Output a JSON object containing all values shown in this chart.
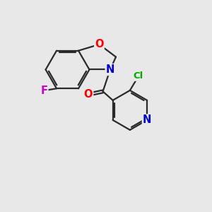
{
  "bg_color": "#e8e8e8",
  "bond_color": "#2a2a2a",
  "bond_width": 1.6,
  "atom_colors": {
    "O": "#ff0000",
    "N": "#0000cc",
    "F": "#cc00cc",
    "Cl": "#00aa00",
    "C": "#2a2a2a"
  },
  "font_size": 10.5
}
